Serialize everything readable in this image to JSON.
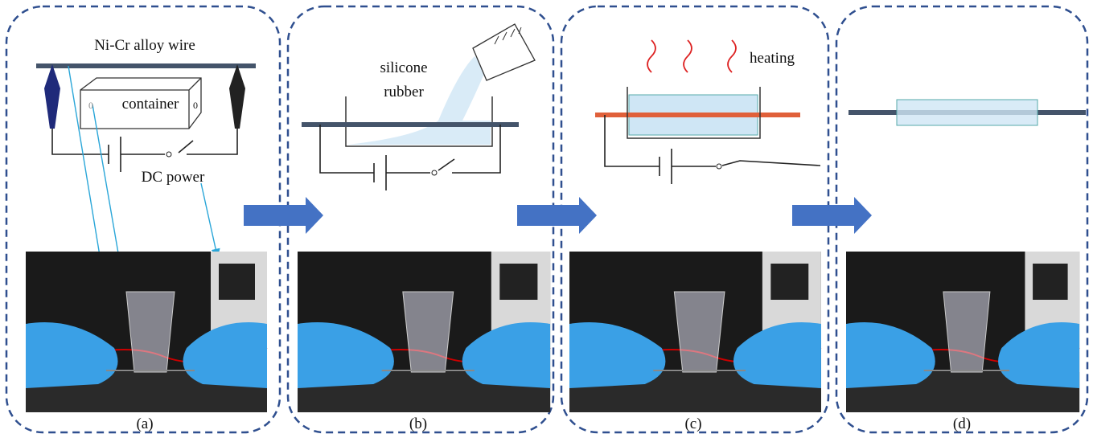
{
  "panels": [
    {
      "label": "(a)",
      "wire_label": "Ni-Cr alloy wire",
      "container_label": "container",
      "left_mark": "0",
      "right_mark": "0",
      "power_label": "DC power"
    },
    {
      "label": "(b)",
      "material_label_lines": [
        "silicone",
        "rubber"
      ]
    },
    {
      "label": "(c)",
      "process_label": "heating"
    },
    {
      "label": "(d)"
    }
  ]
}
